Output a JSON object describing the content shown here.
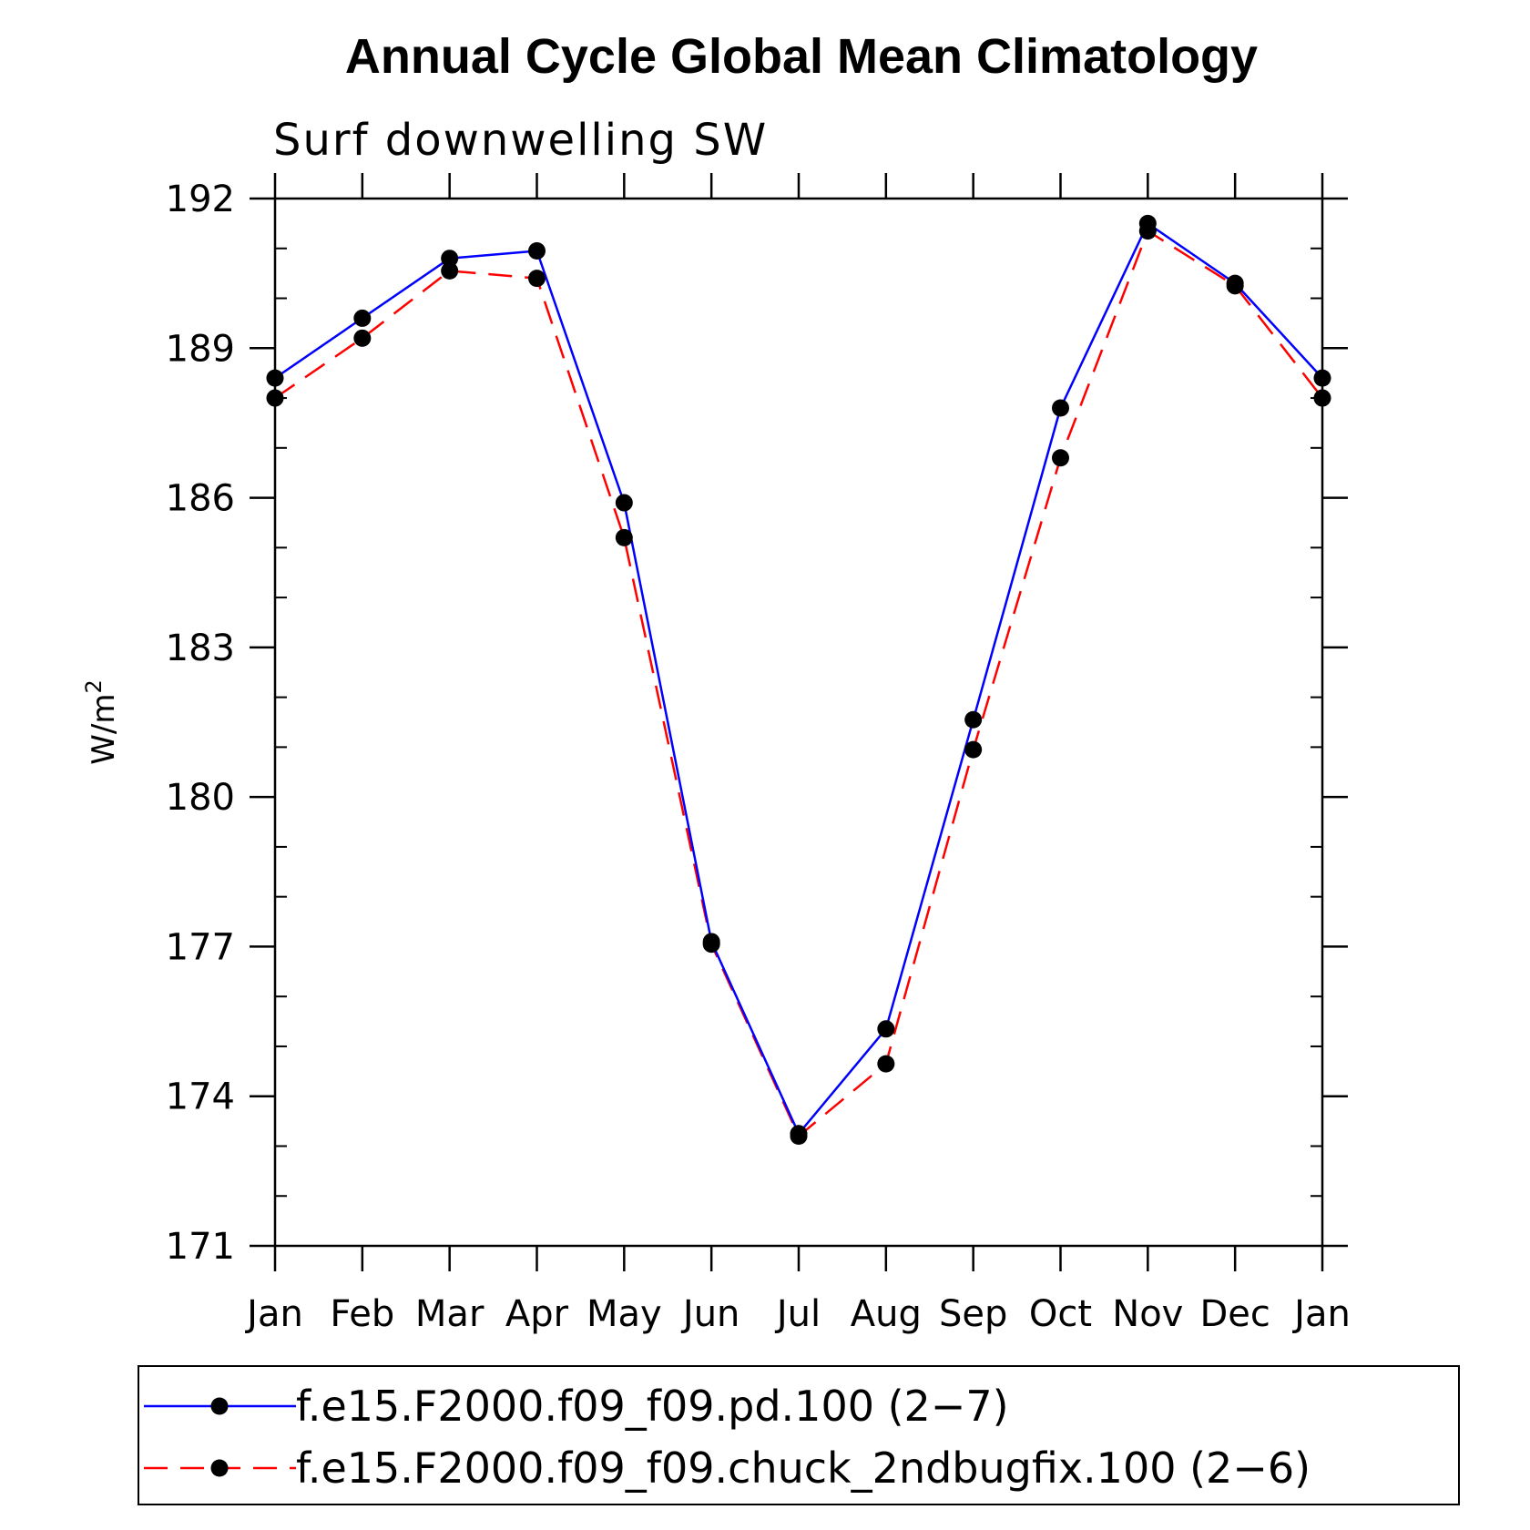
{
  "chart_data": {
    "type": "line",
    "title": "Annual Cycle Global Mean Climatology",
    "subtitle": "Surf downwelling SW",
    "ylabel": "W/m",
    "ylabel_superscript": "2",
    "categories": [
      "Jan",
      "Feb",
      "Mar",
      "Apr",
      "May",
      "Jun",
      "Jul",
      "Aug",
      "Sep",
      "Oct",
      "Nov",
      "Dec",
      "Jan"
    ],
    "ylim": [
      171,
      192
    ],
    "yticks": [
      171,
      174,
      177,
      180,
      183,
      186,
      189,
      192
    ],
    "series": [
      {
        "name": "f.e15.F2000.f09_f09.pd.100 (2-7)",
        "label": "f.e15.F2000.f09_f09.pd.100 (2−7)",
        "color": "#0000ff",
        "dash": "solid",
        "values": [
          188.4,
          189.6,
          190.8,
          190.95,
          185.9,
          177.1,
          173.25,
          175.35,
          181.55,
          187.8,
          191.5,
          190.3,
          188.4
        ]
      },
      {
        "name": "f.e15.F2000.f09_f09.chuck_2ndbugfix.100 (2-6)",
        "label": "f.e15.F2000.f09_f09.chuck_2ndbugfix.100 (2−6)",
        "color": "#ff0000",
        "dash": "dashed",
        "values": [
          188.0,
          189.2,
          190.55,
          190.4,
          185.2,
          177.05,
          173.2,
          174.65,
          180.95,
          186.8,
          191.35,
          190.25,
          188.0
        ]
      }
    ],
    "marker_color": "#000000",
    "legend_position": "bottom"
  }
}
